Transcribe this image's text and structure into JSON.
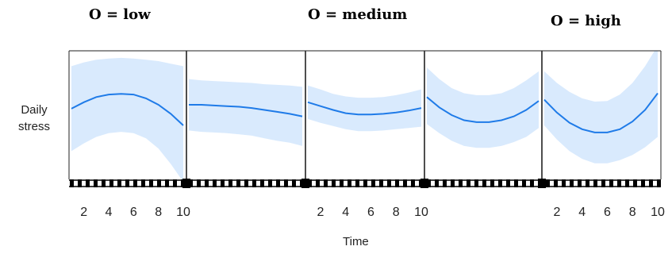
{
  "chart_data": {
    "type": "line",
    "y_label": "Daily stress",
    "x_label": "Time",
    "x_ticks_labeled": [
      2,
      4,
      6,
      8,
      10
    ],
    "xlim": [
      1,
      10
    ],
    "groups": [
      "O = low",
      "O = medium",
      "O = high"
    ],
    "panels": [
      {
        "group": "O = low",
        "x": [
          1,
          2,
          3,
          4,
          5,
          6,
          7,
          8,
          9,
          10
        ],
        "y": [
          0.55,
          0.6,
          0.64,
          0.66,
          0.665,
          0.66,
          0.63,
          0.58,
          0.51,
          0.42
        ],
        "band_upper": [
          0.88,
          0.91,
          0.93,
          0.94,
          0.945,
          0.94,
          0.93,
          0.92,
          0.9,
          0.88
        ],
        "band_lower": [
          0.22,
          0.28,
          0.33,
          0.36,
          0.37,
          0.36,
          0.32,
          0.24,
          0.12,
          -0.02
        ]
      },
      {
        "group": "",
        "x": [
          1,
          2,
          3,
          4,
          5,
          6,
          7,
          8,
          9,
          10
        ],
        "y": [
          0.58,
          0.58,
          0.575,
          0.57,
          0.565,
          0.555,
          0.54,
          0.525,
          0.51,
          0.49
        ],
        "band_upper": [
          0.78,
          0.77,
          0.765,
          0.76,
          0.755,
          0.75,
          0.74,
          0.735,
          0.73,
          0.72
        ],
        "band_lower": [
          0.38,
          0.37,
          0.365,
          0.36,
          0.35,
          0.34,
          0.32,
          0.3,
          0.285,
          0.26
        ]
      },
      {
        "group": "O = medium",
        "x": [
          1,
          2,
          3,
          4,
          5,
          6,
          7,
          8,
          9,
          10
        ],
        "y": [
          0.6,
          0.57,
          0.54,
          0.515,
          0.505,
          0.505,
          0.51,
          0.52,
          0.535,
          0.555
        ],
        "band_upper": [
          0.73,
          0.7,
          0.665,
          0.645,
          0.635,
          0.635,
          0.64,
          0.655,
          0.675,
          0.7
        ],
        "band_lower": [
          0.47,
          0.44,
          0.415,
          0.39,
          0.375,
          0.375,
          0.38,
          0.39,
          0.4,
          0.41
        ]
      },
      {
        "group": "",
        "x": [
          1,
          2,
          3,
          4,
          5,
          6,
          7,
          8,
          9,
          10
        ],
        "y": [
          0.64,
          0.56,
          0.5,
          0.46,
          0.445,
          0.445,
          0.46,
          0.49,
          0.54,
          0.61
        ],
        "band_upper": [
          0.87,
          0.78,
          0.71,
          0.67,
          0.655,
          0.655,
          0.67,
          0.71,
          0.77,
          0.84
        ],
        "band_lower": [
          0.43,
          0.36,
          0.3,
          0.26,
          0.245,
          0.245,
          0.26,
          0.29,
          0.33,
          0.4
        ]
      },
      {
        "group": "O = high",
        "x": [
          1,
          2,
          3,
          4,
          5,
          6,
          7,
          8,
          9,
          10
        ],
        "y": [
          0.62,
          0.52,
          0.44,
          0.39,
          0.365,
          0.365,
          0.39,
          0.45,
          0.54,
          0.67
        ],
        "band_upper": [
          0.84,
          0.75,
          0.68,
          0.63,
          0.605,
          0.61,
          0.66,
          0.75,
          0.88,
          1.04
        ],
        "band_lower": [
          0.42,
          0.31,
          0.22,
          0.16,
          0.125,
          0.125,
          0.15,
          0.19,
          0.25,
          0.33
        ]
      }
    ],
    "colors": {
      "line": "#1f7be8",
      "band": "#d9eafd",
      "frame": "#222222"
    }
  }
}
